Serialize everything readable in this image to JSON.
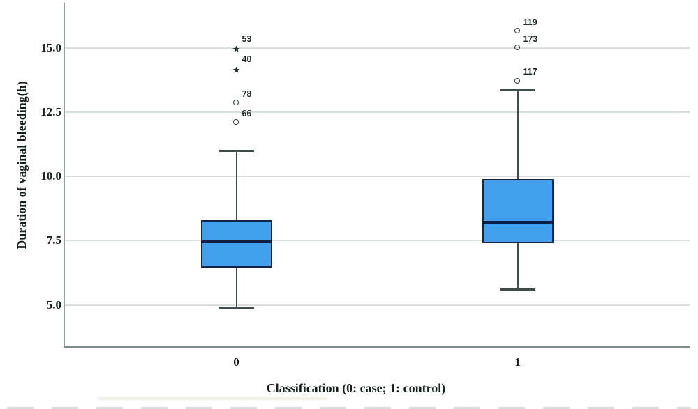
{
  "labels": {
    "y_axis_title": "Duration of vaginal bleeding(h)",
    "x_axis_title": "Classification (0: case; 1: control)"
  },
  "chart_data": {
    "type": "boxplot",
    "title": "",
    "xlabel": "Classification (0: case; 1: control)",
    "ylabel": "Duration of vaginal bleeding(h)",
    "categories": [
      "0",
      "1"
    ],
    "y_ticks": [
      "5.0",
      "7.5",
      "10.0",
      "12.5",
      "15.0"
    ],
    "ylim": [
      3.35,
      16.75
    ],
    "grid": "horizontal-only",
    "legend": "none",
    "groups": [
      {
        "category": "0",
        "whisker_low": 4.9,
        "q1": 6.45,
        "median": 7.45,
        "q3": 8.3,
        "whisker_high": 11.0,
        "outliers": [
          {
            "label": "66",
            "value": 12.1,
            "marker": "circle"
          },
          {
            "label": "78",
            "value": 12.85,
            "marker": "circle"
          },
          {
            "label": "40",
            "value": 14.2,
            "marker": "star"
          },
          {
            "label": "53",
            "value": 15.0,
            "marker": "star"
          }
        ]
      },
      {
        "category": "1",
        "whisker_low": 5.6,
        "q1": 7.4,
        "median": 8.2,
        "q3": 9.9,
        "whisker_high": 13.35,
        "outliers": [
          {
            "label": "117",
            "value": 13.7,
            "marker": "circle"
          },
          {
            "label": "173",
            "value": 15.0,
            "marker": "circle"
          },
          {
            "label": "119",
            "value": 15.65,
            "marker": "circle"
          }
        ]
      }
    ],
    "colors": {
      "box_fill": "#42a0ec",
      "box_border": "#13264a",
      "median": "#0c2145",
      "whisker": "#3e4c4c",
      "outlier_marker": "#2c3c3a",
      "gridline": "#d8dedd",
      "axis": "#93a19f",
      "text": "#161f1d"
    }
  }
}
